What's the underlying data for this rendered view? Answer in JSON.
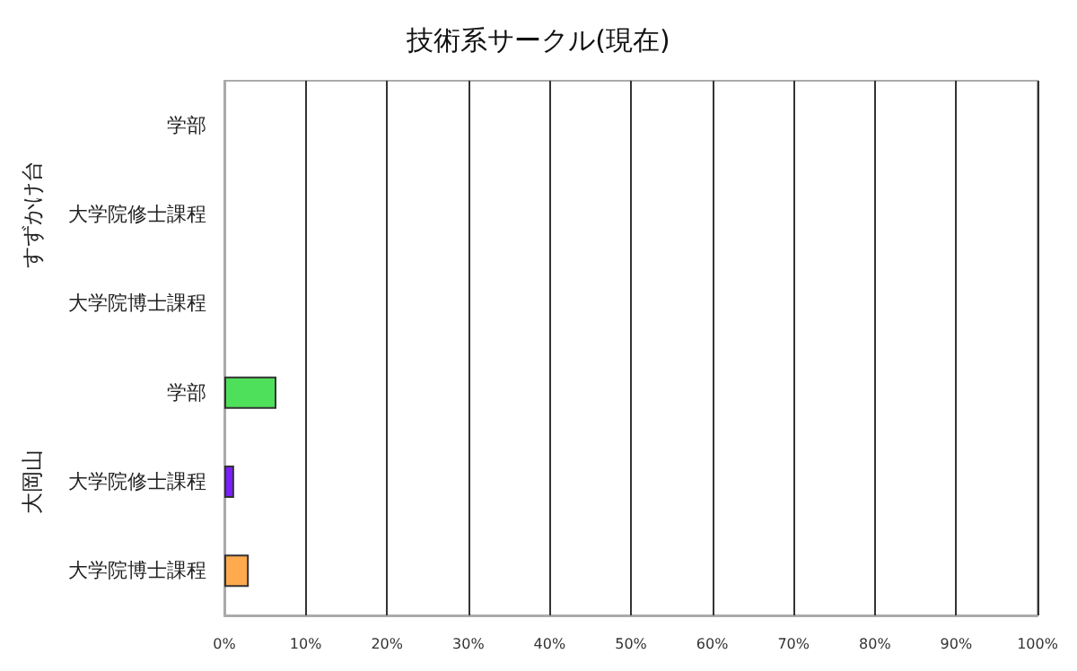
{
  "chart_data": {
    "type": "bar",
    "orientation": "horizontal",
    "title": "技術系サークル(現在)",
    "categories": [
      "学部",
      "大学院修士課程",
      "大学院博士課程",
      "学部",
      "大学院修士課程",
      "大学院博士課程"
    ],
    "values": [
      0,
      0,
      0,
      6.4,
      1.2,
      3.0
    ],
    "colors": [
      "#4ee05a",
      "#7b1fff",
      "#ffaa4f",
      "#4ee05a",
      "#7b1fff",
      "#ffaa4f"
    ],
    "xlim": [
      0,
      100
    ],
    "xticks": [
      {
        "value": 0,
        "label": "0%"
      },
      {
        "value": 10,
        "label": "10%"
      },
      {
        "value": 20,
        "label": "20%"
      },
      {
        "value": 30,
        "label": "30%"
      },
      {
        "value": 40,
        "label": "40%"
      },
      {
        "value": 50,
        "label": "50%"
      },
      {
        "value": 60,
        "label": "60%"
      },
      {
        "value": 70,
        "label": "70%"
      },
      {
        "value": 80,
        "label": "80%"
      },
      {
        "value": 90,
        "label": "90%"
      },
      {
        "value": 100,
        "label": "100%"
      }
    ],
    "annotations": [
      "すずかけ台",
      "大岡山"
    ],
    "grid": "x"
  }
}
